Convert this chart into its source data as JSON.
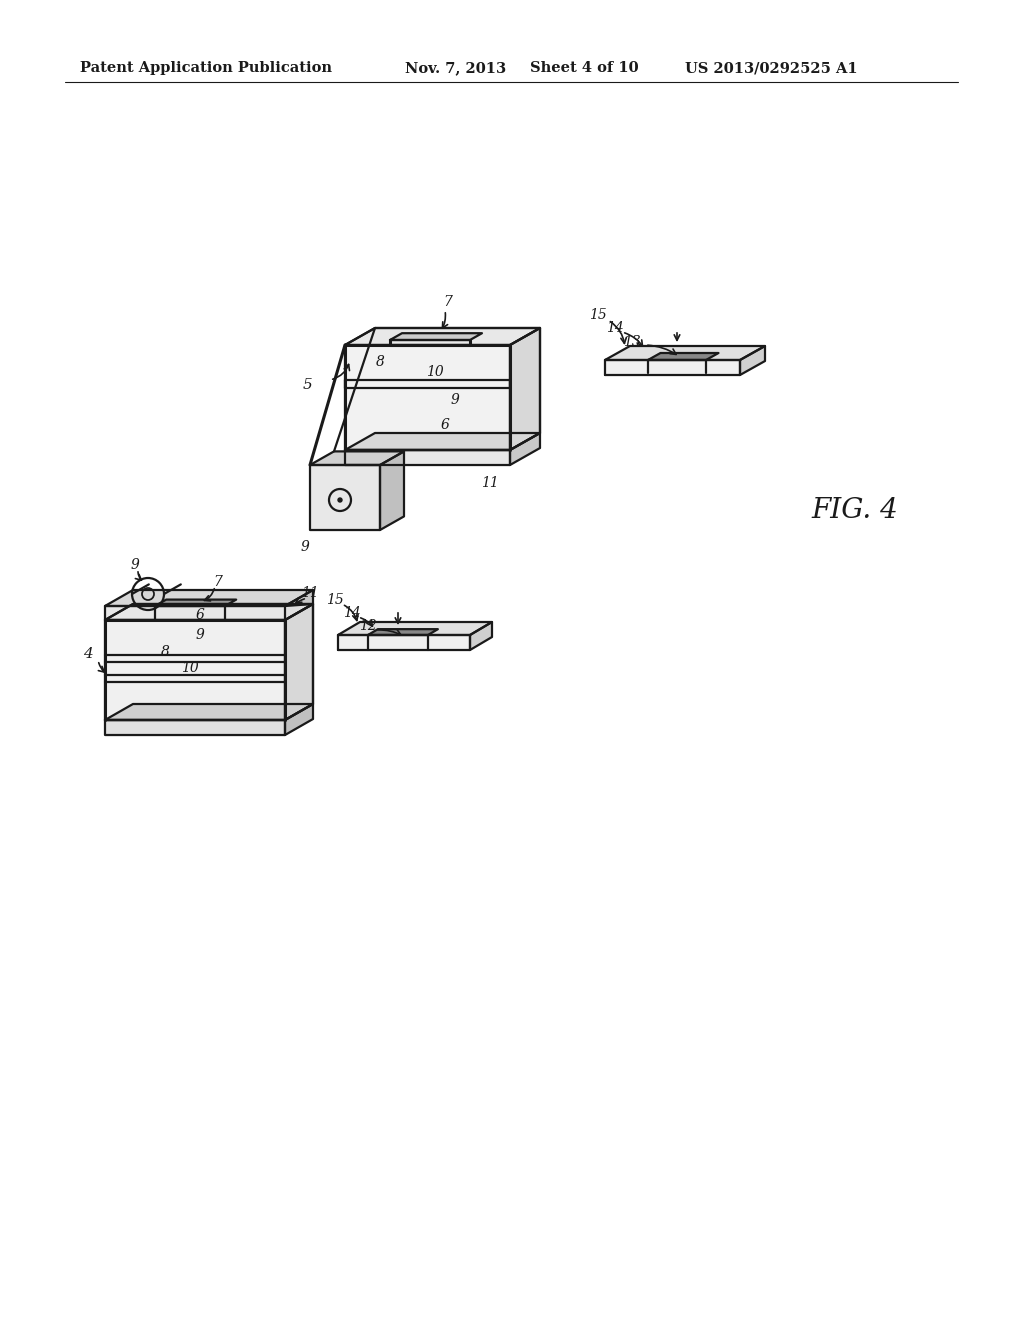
{
  "background_color": "#ffffff",
  "header_text": "Patent Application Publication",
  "header_date": "Nov. 7, 2013",
  "header_sheet": "Sheet 4 of 10",
  "header_patent": "US 2013/0292525 A1",
  "fig_label": "FIG. 4",
  "line_color": "#1a1a1a",
  "line_width": 1.6,
  "thick_lw": 2.2
}
